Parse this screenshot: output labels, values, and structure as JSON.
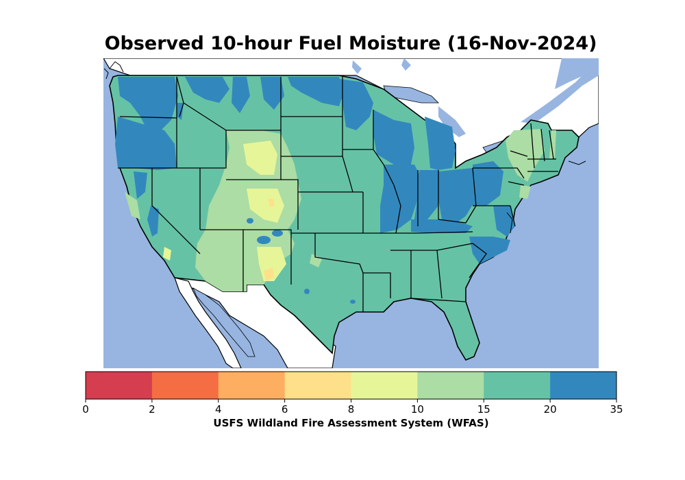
{
  "title": "Observed 10-hour Fuel Moisture (16-Nov-2024)",
  "colorbar": {
    "caption": "USFS Wildland Fire Assessment System (WFAS)",
    "ticks": [
      "0",
      "2",
      "4",
      "6",
      "8",
      "10",
      "15",
      "20",
      "35"
    ],
    "bins": [
      {
        "range": "0-2",
        "color": "#d53e4f"
      },
      {
        "range": "2-4",
        "color": "#f46d43"
      },
      {
        "range": "4-6",
        "color": "#fdae61"
      },
      {
        "range": "6-8",
        "color": "#fee08b"
      },
      {
        "range": "8-10",
        "color": "#e6f598"
      },
      {
        "range": "10-15",
        "color": "#abdda4"
      },
      {
        "range": "15-20",
        "color": "#66c2a5"
      },
      {
        "range": "20-35",
        "color": "#3288bd"
      }
    ]
  },
  "colors": {
    "water": "#97b5e0",
    "land_outside": "#ffffff",
    "border": "#000000"
  }
}
